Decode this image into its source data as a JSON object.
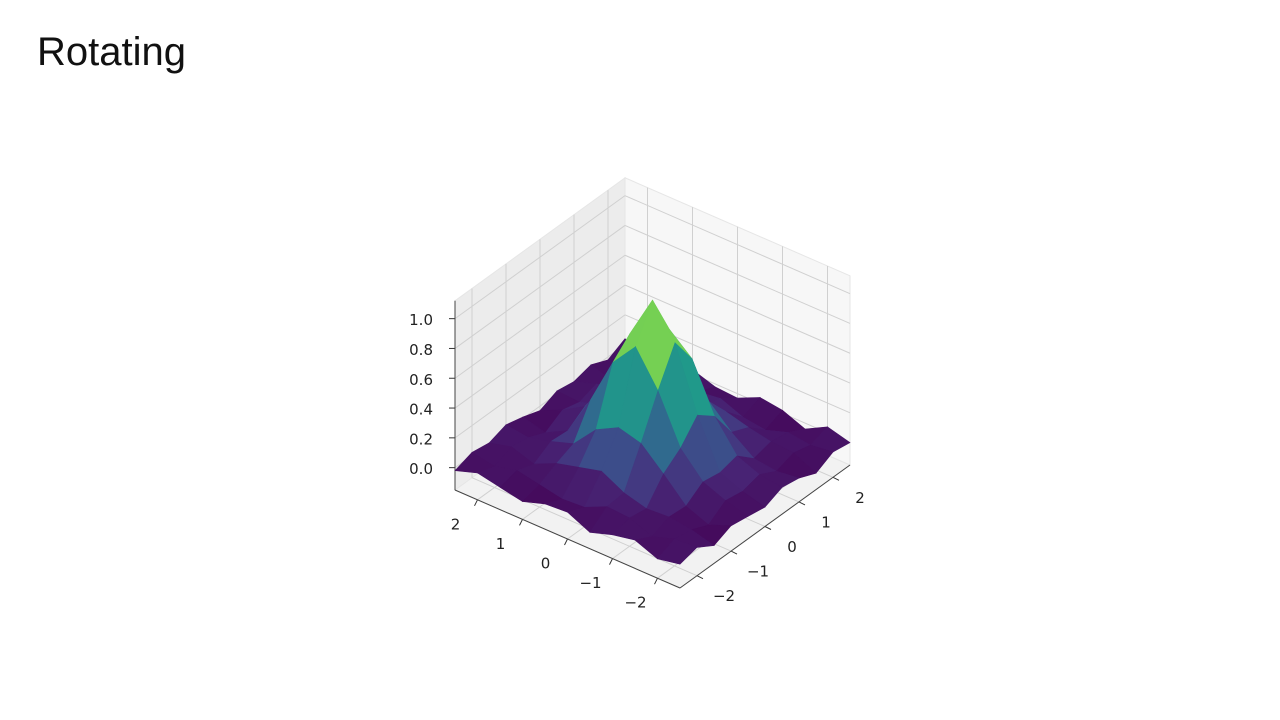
{
  "slide": {
    "title": "Rotating"
  },
  "chart_data": {
    "type": "surface",
    "colormap": "viridis",
    "x": [
      -2.5,
      -2,
      -1.5,
      -1,
      -0.5,
      0,
      0.5,
      1,
      1.5,
      2,
      2.5
    ],
    "y": [
      -2.5,
      -2,
      -1.5,
      -1,
      -0.5,
      0,
      0.5,
      1,
      1.5,
      2,
      2.5
    ],
    "z": [
      [
        0.01,
        0.04,
        -0.03,
        0.02,
        0.0,
        -0.02,
        0.03,
        0.01,
        -0.04,
        0.02,
        0.0
      ],
      [
        -0.02,
        0.03,
        0.01,
        -0.04,
        0.04,
        0.02,
        0.05,
        -0.01,
        0.03,
        0.0,
        0.04
      ],
      [
        0.04,
        -0.02,
        0.03,
        0.02,
        0.1,
        0.08,
        0.11,
        0.01,
        0.04,
        0.02,
        -0.04
      ],
      [
        0.01,
        0.04,
        0.02,
        0.17,
        0.26,
        0.4,
        0.31,
        0.12,
        0.07,
        -0.03,
        0.02
      ],
      [
        -0.04,
        0.05,
        0.06,
        0.31,
        0.58,
        0.82,
        0.63,
        0.26,
        0.11,
        -0.01,
        0.04
      ],
      [
        0.03,
        -0.02,
        0.14,
        0.35,
        0.81,
        1.04,
        0.76,
        0.4,
        0.09,
        0.05,
        -0.03
      ],
      [
        0.02,
        -0.03,
        0.1,
        0.27,
        0.64,
        0.75,
        0.59,
        0.32,
        0.05,
        0.03,
        -0.02
      ],
      [
        -0.03,
        0.0,
        0.06,
        0.11,
        0.32,
        0.35,
        0.27,
        0.16,
        0.01,
        0.04,
        0.03
      ],
      [
        0.0,
        0.03,
        -0.01,
        0.06,
        0.05,
        0.13,
        0.06,
        0.07,
        -0.02,
        0.03,
        0.01
      ],
      [
        0.03,
        -0.01,
        0.04,
        0.02,
        -0.03,
        0.04,
        0.01,
        0.05,
        -0.02,
        0.04,
        -0.01
      ],
      [
        -0.02,
        0.02,
        0.0,
        0.04,
        0.01,
        -0.03,
        0.02,
        0.0,
        0.03,
        -0.02,
        0.04
      ]
    ],
    "xlim": [
      -2.5,
      2.5
    ],
    "ylim": [
      -2.5,
      2.5
    ],
    "zlim": [
      -0.15,
      1.12
    ],
    "xticks": [
      {
        "value": -2,
        "label": "−2"
      },
      {
        "value": -1,
        "label": "−1"
      },
      0,
      1,
      2
    ],
    "yticks": [
      {
        "value": -2,
        "label": "−2"
      },
      {
        "value": -1,
        "label": "−1"
      },
      0,
      1,
      2
    ],
    "zticks": [
      {
        "value": 0,
        "label": "0.0"
      },
      0.2,
      0.4,
      0.6,
      0.8,
      {
        "value": 1,
        "label": "1.0"
      }
    ],
    "grid": true
  }
}
